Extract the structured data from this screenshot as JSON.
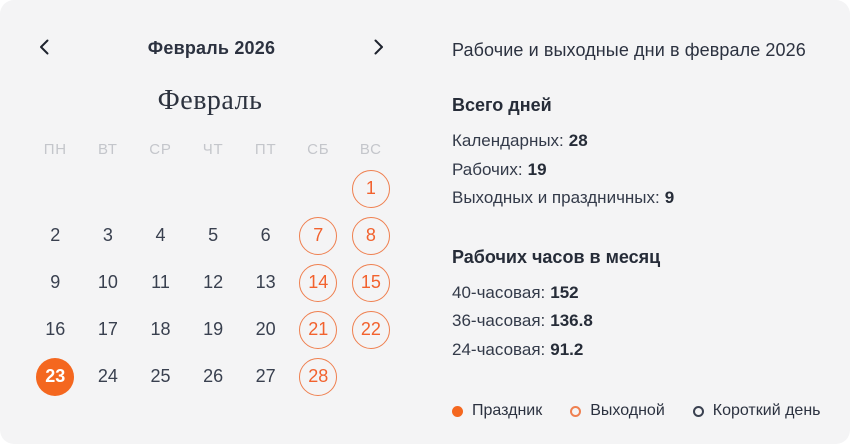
{
  "theme": {
    "card_bg": "#f4f4f5",
    "accent_orange_fill": "#f4671f",
    "accent_orange_outline": "#ef8050",
    "accent_orange_text": "#f2622e",
    "text_dark": "#2c3240",
    "muted_gray": "#c4c6cb"
  },
  "calendar": {
    "nav_title": "Февраль 2026",
    "prev_icon": "chevron-left",
    "next_icon": "chevron-right",
    "month_heading": "Февраль",
    "weekday_headers": [
      "ПН",
      "ВТ",
      "СР",
      "ЧТ",
      "ПТ",
      "СБ",
      "ВС"
    ],
    "weeks": [
      [
        {
          "day": "",
          "type": "empty"
        },
        {
          "day": "",
          "type": "empty"
        },
        {
          "day": "",
          "type": "empty"
        },
        {
          "day": "",
          "type": "empty"
        },
        {
          "day": "",
          "type": "empty"
        },
        {
          "day": "",
          "type": "empty"
        },
        {
          "day": "1",
          "type": "weekend"
        }
      ],
      [
        {
          "day": "2",
          "type": "work"
        },
        {
          "day": "3",
          "type": "work"
        },
        {
          "day": "4",
          "type": "work"
        },
        {
          "day": "5",
          "type": "work"
        },
        {
          "day": "6",
          "type": "work"
        },
        {
          "day": "7",
          "type": "weekend"
        },
        {
          "day": "8",
          "type": "weekend"
        }
      ],
      [
        {
          "day": "9",
          "type": "work"
        },
        {
          "day": "10",
          "type": "work"
        },
        {
          "day": "11",
          "type": "work"
        },
        {
          "day": "12",
          "type": "work"
        },
        {
          "day": "13",
          "type": "work"
        },
        {
          "day": "14",
          "type": "weekend"
        },
        {
          "day": "15",
          "type": "weekend"
        }
      ],
      [
        {
          "day": "16",
          "type": "work"
        },
        {
          "day": "17",
          "type": "work"
        },
        {
          "day": "18",
          "type": "work"
        },
        {
          "day": "19",
          "type": "work"
        },
        {
          "day": "20",
          "type": "work"
        },
        {
          "day": "21",
          "type": "weekend"
        },
        {
          "day": "22",
          "type": "weekend"
        }
      ],
      [
        {
          "day": "23",
          "type": "holiday"
        },
        {
          "day": "24",
          "type": "work"
        },
        {
          "day": "25",
          "type": "work"
        },
        {
          "day": "26",
          "type": "work"
        },
        {
          "day": "27",
          "type": "work"
        },
        {
          "day": "28",
          "type": "weekend"
        },
        {
          "day": "",
          "type": "empty"
        }
      ]
    ]
  },
  "info": {
    "title": "Рабочие и выходные дни в феврале 2026",
    "total_days": {
      "heading": "Всего дней",
      "items": [
        {
          "label": "Календарных:",
          "value": "28"
        },
        {
          "label": "Рабочих:",
          "value": "19"
        },
        {
          "label": "Выходных и праздничных:",
          "value": "9"
        }
      ]
    },
    "working_hours": {
      "heading": "Рабочих часов в месяц",
      "items": [
        {
          "label": "40-часовая:",
          "value": "152"
        },
        {
          "label": "36-часовая:",
          "value": "136.8"
        },
        {
          "label": "24-часовая:",
          "value": "91.2"
        }
      ]
    },
    "legend": [
      {
        "label": "Праздник",
        "type": "holiday"
      },
      {
        "label": "Выходной",
        "type": "weekend"
      },
      {
        "label": "Короткий день",
        "type": "short-day"
      }
    ]
  }
}
